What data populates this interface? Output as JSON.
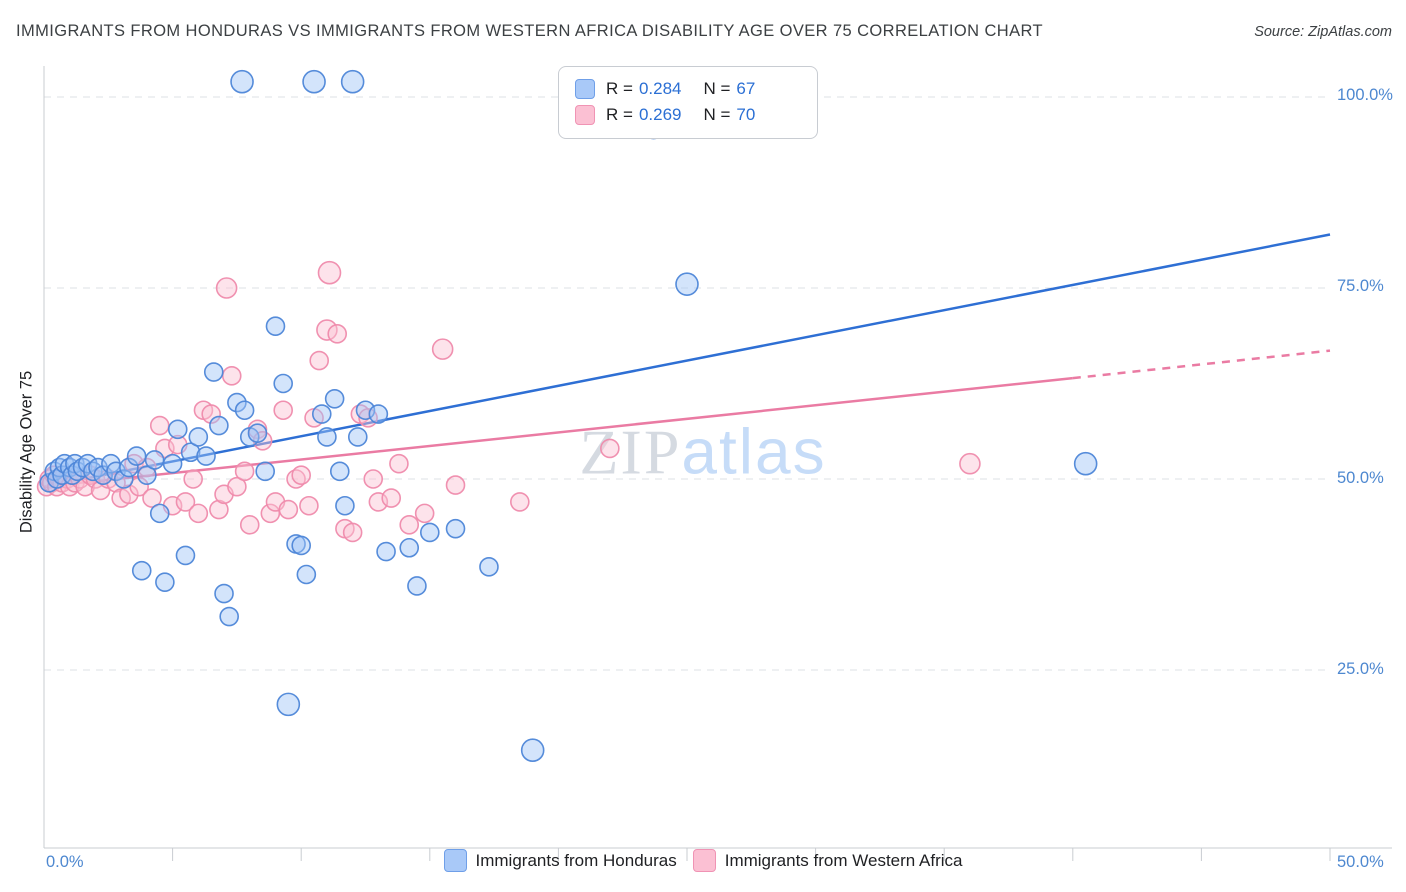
{
  "page": {
    "title": "IMMIGRANTS FROM HONDURAS VS IMMIGRANTS FROM WESTERN AFRICA DISABILITY AGE OVER 75 CORRELATION CHART",
    "source": "Source: ZipAtlas.com"
  },
  "axes": {
    "y_label": "Disability Age Over 75",
    "x_min_label": "0.0%",
    "x_max_label": "50.0%"
  },
  "legend_box": {
    "rows": [
      {
        "r_label": "R =",
        "r_value": "0.284",
        "n_label": "N =",
        "n_value": "67"
      },
      {
        "r_label": "R =",
        "r_value": "0.269",
        "n_label": "N =",
        "n_value": "70"
      }
    ]
  },
  "bottom_legend": {
    "items": [
      {
        "label": "Immigrants from Honduras"
      },
      {
        "label": "Immigrants from Western Africa"
      }
    ]
  },
  "watermark": {
    "part1": "ZIP",
    "part2": "atlas"
  },
  "chart_data": {
    "type": "scatter",
    "title": "IMMIGRANTS FROM HONDURAS VS IMMIGRANTS FROM WESTERN AFRICA DISABILITY AGE OVER 75 CORRELATION CHART",
    "xlabel": "",
    "ylabel": "Disability Age Over 75",
    "xlim": [
      0,
      0.5
    ],
    "ylim": [
      0,
      1.05
    ],
    "grid": "horizontal-dashed",
    "legend_position": "top-center-box and bottom-center",
    "x_tick_labels": [
      "0.0%",
      "50.0%"
    ],
    "y_ticks": [
      {
        "label": "100.0%",
        "value": 1.0
      },
      {
        "label": "75.0%",
        "value": 0.75
      },
      {
        "label": "50.0%",
        "value": 0.5
      },
      {
        "label": "25.0%",
        "value": 0.25
      }
    ],
    "series": [
      {
        "name": "Immigrants from Honduras",
        "R": 0.284,
        "N": 67,
        "fill": "#9ec3f7",
        "stroke": "#4d86d8",
        "points": [
          [
            0.002,
            0.495
          ],
          [
            0.004,
            0.51
          ],
          [
            0.005,
            0.5
          ],
          [
            0.006,
            0.515
          ],
          [
            0.007,
            0.505
          ],
          [
            0.008,
            0.52
          ],
          [
            0.01,
            0.515
          ],
          [
            0.011,
            0.505
          ],
          [
            0.012,
            0.52
          ],
          [
            0.013,
            0.51
          ],
          [
            0.015,
            0.515
          ],
          [
            0.017,
            0.52
          ],
          [
            0.019,
            0.51
          ],
          [
            0.021,
            0.515
          ],
          [
            0.023,
            0.505
          ],
          [
            0.026,
            0.52
          ],
          [
            0.028,
            0.51
          ],
          [
            0.031,
            0.5
          ],
          [
            0.033,
            0.515
          ],
          [
            0.036,
            0.53
          ],
          [
            0.038,
            0.38
          ],
          [
            0.04,
            0.505
          ],
          [
            0.043,
            0.525
          ],
          [
            0.045,
            0.455
          ],
          [
            0.047,
            0.365
          ],
          [
            0.05,
            0.52
          ],
          [
            0.052,
            0.565
          ],
          [
            0.055,
            0.4
          ],
          [
            0.057,
            0.535
          ],
          [
            0.06,
            0.555
          ],
          [
            0.063,
            0.53
          ],
          [
            0.066,
            0.64
          ],
          [
            0.068,
            0.57
          ],
          [
            0.07,
            0.35
          ],
          [
            0.072,
            0.32
          ],
          [
            0.075,
            0.6
          ],
          [
            0.078,
            0.59
          ],
          [
            0.08,
            0.555
          ],
          [
            0.083,
            0.56
          ],
          [
            0.086,
            0.51
          ],
          [
            0.09,
            0.7
          ],
          [
            0.093,
            0.625
          ],
          [
            0.095,
            0.205,
            11
          ],
          [
            0.098,
            0.415
          ],
          [
            0.1,
            0.413
          ],
          [
            0.102,
            0.375
          ],
          [
            0.105,
            1.02,
            11
          ],
          [
            0.108,
            0.585
          ],
          [
            0.11,
            0.555
          ],
          [
            0.113,
            0.605
          ],
          [
            0.115,
            0.51
          ],
          [
            0.117,
            0.465
          ],
          [
            0.12,
            1.02,
            11
          ],
          [
            0.122,
            0.555
          ],
          [
            0.125,
            0.59
          ],
          [
            0.13,
            0.585
          ],
          [
            0.133,
            0.405
          ],
          [
            0.142,
            0.41
          ],
          [
            0.145,
            0.36
          ],
          [
            0.15,
            0.43
          ],
          [
            0.16,
            0.435
          ],
          [
            0.173,
            0.385
          ],
          [
            0.19,
            0.145,
            11
          ],
          [
            0.077,
            1.02,
            11
          ],
          [
            0.237,
            0.96,
            11
          ],
          [
            0.25,
            0.755,
            11
          ],
          [
            0.405,
            0.52,
            11
          ]
        ]
      },
      {
        "name": "Immigrants from Western Africa",
        "R": 0.269,
        "N": 70,
        "fill": "#fbc0d3",
        "stroke": "#ef8bac",
        "points": [
          [
            0.001,
            0.49
          ],
          [
            0.002,
            0.5
          ],
          [
            0.003,
            0.495
          ],
          [
            0.004,
            0.505
          ],
          [
            0.005,
            0.49
          ],
          [
            0.006,
            0.5
          ],
          [
            0.007,
            0.495
          ],
          [
            0.008,
            0.505
          ],
          [
            0.009,
            0.5
          ],
          [
            0.01,
            0.49
          ],
          [
            0.011,
            0.505
          ],
          [
            0.012,
            0.495
          ],
          [
            0.014,
            0.5
          ],
          [
            0.016,
            0.49
          ],
          [
            0.018,
            0.505
          ],
          [
            0.02,
            0.5
          ],
          [
            0.022,
            0.485
          ],
          [
            0.025,
            0.5
          ],
          [
            0.028,
            0.495
          ],
          [
            0.03,
            0.475
          ],
          [
            0.033,
            0.48
          ],
          [
            0.035,
            0.52
          ],
          [
            0.037,
            0.49
          ],
          [
            0.04,
            0.515
          ],
          [
            0.042,
            0.475
          ],
          [
            0.045,
            0.57
          ],
          [
            0.047,
            0.54
          ],
          [
            0.05,
            0.465
          ],
          [
            0.052,
            0.545
          ],
          [
            0.055,
            0.47
          ],
          [
            0.058,
            0.5
          ],
          [
            0.06,
            0.455
          ],
          [
            0.062,
            0.59
          ],
          [
            0.065,
            0.585
          ],
          [
            0.068,
            0.46
          ],
          [
            0.07,
            0.48
          ],
          [
            0.071,
            0.75,
            10
          ],
          [
            0.073,
            0.635
          ],
          [
            0.075,
            0.49
          ],
          [
            0.078,
            0.51
          ],
          [
            0.08,
            0.44
          ],
          [
            0.083,
            0.565
          ],
          [
            0.085,
            0.55
          ],
          [
            0.088,
            0.455
          ],
          [
            0.09,
            0.47
          ],
          [
            0.093,
            0.59
          ],
          [
            0.095,
            0.46
          ],
          [
            0.098,
            0.5
          ],
          [
            0.1,
            0.505
          ],
          [
            0.103,
            0.465
          ],
          [
            0.105,
            0.58
          ],
          [
            0.107,
            0.655
          ],
          [
            0.11,
            0.695,
            10
          ],
          [
            0.111,
            0.77,
            11
          ],
          [
            0.114,
            0.69
          ],
          [
            0.117,
            0.435
          ],
          [
            0.12,
            0.43
          ],
          [
            0.123,
            0.585
          ],
          [
            0.126,
            0.58
          ],
          [
            0.13,
            0.47
          ],
          [
            0.135,
            0.475
          ],
          [
            0.138,
            0.52
          ],
          [
            0.142,
            0.44
          ],
          [
            0.148,
            0.455
          ],
          [
            0.155,
            0.67,
            10
          ],
          [
            0.16,
            0.492
          ],
          [
            0.185,
            0.47
          ],
          [
            0.22,
            0.54
          ],
          [
            0.36,
            0.52,
            10
          ],
          [
            0.128,
            0.5
          ]
        ]
      }
    ],
    "trend_lines": [
      {
        "series": "Immigrants from Honduras",
        "x1": 0,
        "y1": 0.49,
        "x2": 0.5,
        "y2": 0.82,
        "color": "#2e6fd4",
        "dashed": false
      },
      {
        "series": "Immigrants from Western Africa",
        "x1": 0,
        "y1": 0.49,
        "x2": 0.4,
        "y2": 0.632,
        "color": "#ea7ba3",
        "dashed": false
      },
      {
        "series": "Immigrants from Western Africa",
        "x1": 0.4,
        "y1": 0.632,
        "x2": 0.5,
        "y2": 0.668,
        "color": "#ea7ba3",
        "dashed": true
      }
    ]
  }
}
